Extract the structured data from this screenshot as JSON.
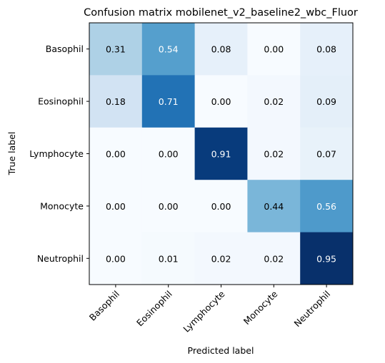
{
  "chart_data": {
    "type": "heatmap",
    "title": "Confusion matrix mobilenet_v2_baseline2_wbc_Fluor",
    "xlabel": "Predicted label",
    "ylabel": "True label",
    "x_categories": [
      "Basophil",
      "Eosinophil",
      "Lymphocyte",
      "Monocyte",
      "Neutrophil"
    ],
    "y_categories": [
      "Basophil",
      "Eosinophil",
      "Lymphocyte",
      "Monocyte",
      "Neutrophil"
    ],
    "values": [
      [
        0.31,
        0.54,
        0.08,
        0.0,
        0.08
      ],
      [
        0.18,
        0.71,
        0.0,
        0.02,
        0.09
      ],
      [
        0.0,
        0.0,
        0.91,
        0.02,
        0.07
      ],
      [
        0.0,
        0.0,
        0.0,
        0.44,
        0.56
      ],
      [
        0.0,
        0.01,
        0.02,
        0.02,
        0.95
      ]
    ],
    "value_range": [
      0,
      0.95
    ],
    "colormap": [
      "#f7fbff",
      "#deebf7",
      "#c6dbef",
      "#9ecae1",
      "#6baed6",
      "#4292c6",
      "#2171b5",
      "#08519c",
      "#08306b"
    ],
    "text_color_dark": "#000000",
    "text_color_light": "#ffffff",
    "grid": false
  }
}
